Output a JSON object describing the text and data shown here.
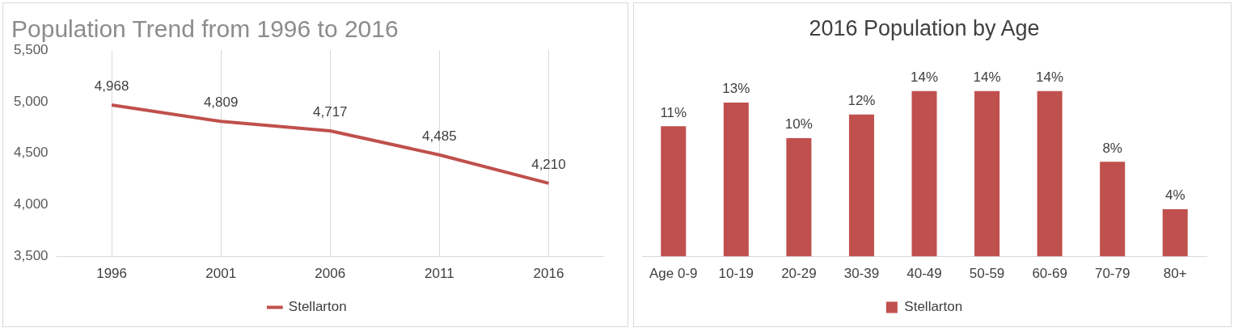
{
  "chart_data": [
    {
      "type": "line",
      "title": "Population Trend from 1996 to 2016",
      "categories": [
        "1996",
        "2001",
        "2006",
        "2011",
        "2016"
      ],
      "series": [
        {
          "name": "Stellarton",
          "color": "#c0504d",
          "values": [
            4968,
            4809,
            4717,
            4485,
            4210
          ],
          "value_labels": [
            "4,968",
            "4,809",
            "4,717",
            "4,485",
            "4,210"
          ]
        }
      ],
      "ylim": [
        3500,
        5500
      ],
      "yticks": [
        {
          "value": 3500,
          "label": "3,500"
        },
        {
          "value": 4000,
          "label": "4,000"
        },
        {
          "value": 4500,
          "label": "4,500"
        },
        {
          "value": 5000,
          "label": "5,000"
        },
        {
          "value": 5500,
          "label": "5,500"
        }
      ],
      "grid": "x",
      "legend": "bottom",
      "marker": "none"
    },
    {
      "type": "bar",
      "title": "2016 Population by Age",
      "categories": [
        "Age 0-9",
        "10-19",
        "20-29",
        "30-39",
        "40-49",
        "50-59",
        "60-69",
        "70-79",
        "80+"
      ],
      "series": [
        {
          "name": "Stellarton",
          "color": "#c0504d",
          "values": [
            11,
            13,
            10,
            12,
            14,
            14,
            14,
            8,
            4
          ],
          "value_labels": [
            "11%",
            "13%",
            "10%",
            "12%",
            "14%",
            "14%",
            "14%",
            "8%",
            "4%"
          ]
        }
      ],
      "grid": false,
      "legend": "bottom",
      "tick_labels": "x"
    }
  ]
}
